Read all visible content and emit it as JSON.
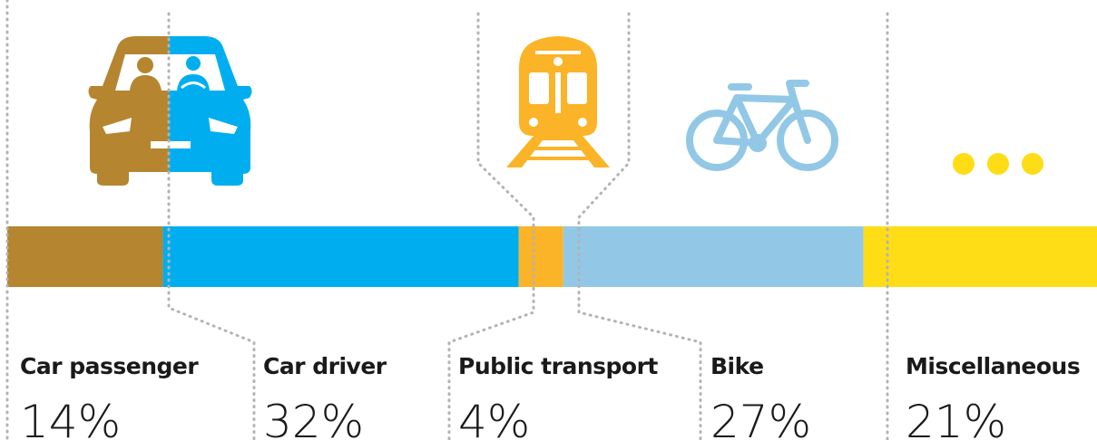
{
  "chart_data": {
    "type": "stacked-bar",
    "categories": [
      "Car passenger",
      "Car driver",
      "Public transport",
      "Bike",
      "Miscellaneous"
    ],
    "values": [
      14,
      32,
      4,
      27,
      21
    ],
    "value_labels": [
      "14%",
      "32%",
      "4%",
      "27%",
      "21%"
    ],
    "colors": [
      "#b5852f",
      "#00aeef",
      "#fbb327",
      "#92c8e6",
      "#ffdd16"
    ]
  }
}
